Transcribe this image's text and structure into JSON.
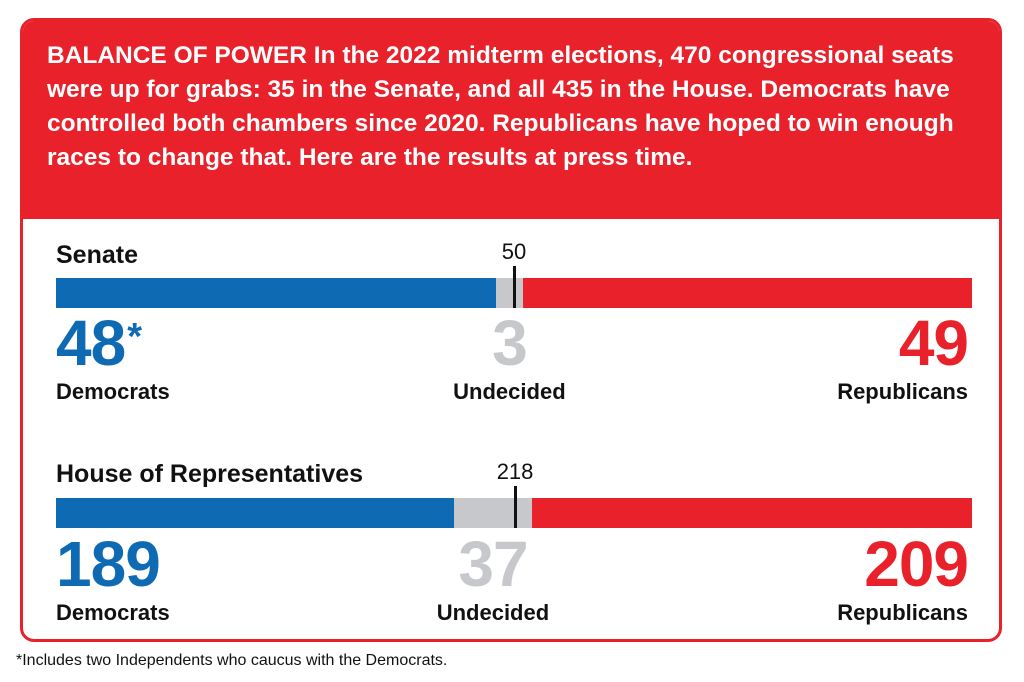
{
  "intro": {
    "lead": "BALANCE OF POWER",
    "body": "In the 2022 midterm elections, 470 congressional seats were up for grabs: 35 in the Senate, and all 435 in the House. Democrats have controlled both chambers since 2020. Republicans have hoped to win enough races to change that. Here are the results at press time."
  },
  "colors": {
    "democrats": "#0f6ab4",
    "undecided": "#c6c8cc",
    "republicans": "#e8212b",
    "marker": "#111111"
  },
  "chart_data": [
    {
      "type": "bar",
      "title": "Senate",
      "total": 100,
      "majority_marker": 50,
      "series": [
        {
          "name": "Democrats",
          "value": 48,
          "asterisk": "*"
        },
        {
          "name": "Undecided",
          "value": 3
        },
        {
          "name": "Republicans",
          "value": 49
        }
      ]
    },
    {
      "type": "bar",
      "title": "House of Representatives",
      "total": 435,
      "majority_marker": 218,
      "series": [
        {
          "name": "Democrats",
          "value": 189
        },
        {
          "name": "Undecided",
          "value": 37
        },
        {
          "name": "Republicans",
          "value": 209
        }
      ]
    }
  ],
  "footnote": "*Includes two Independents who caucus with the Democrats."
}
